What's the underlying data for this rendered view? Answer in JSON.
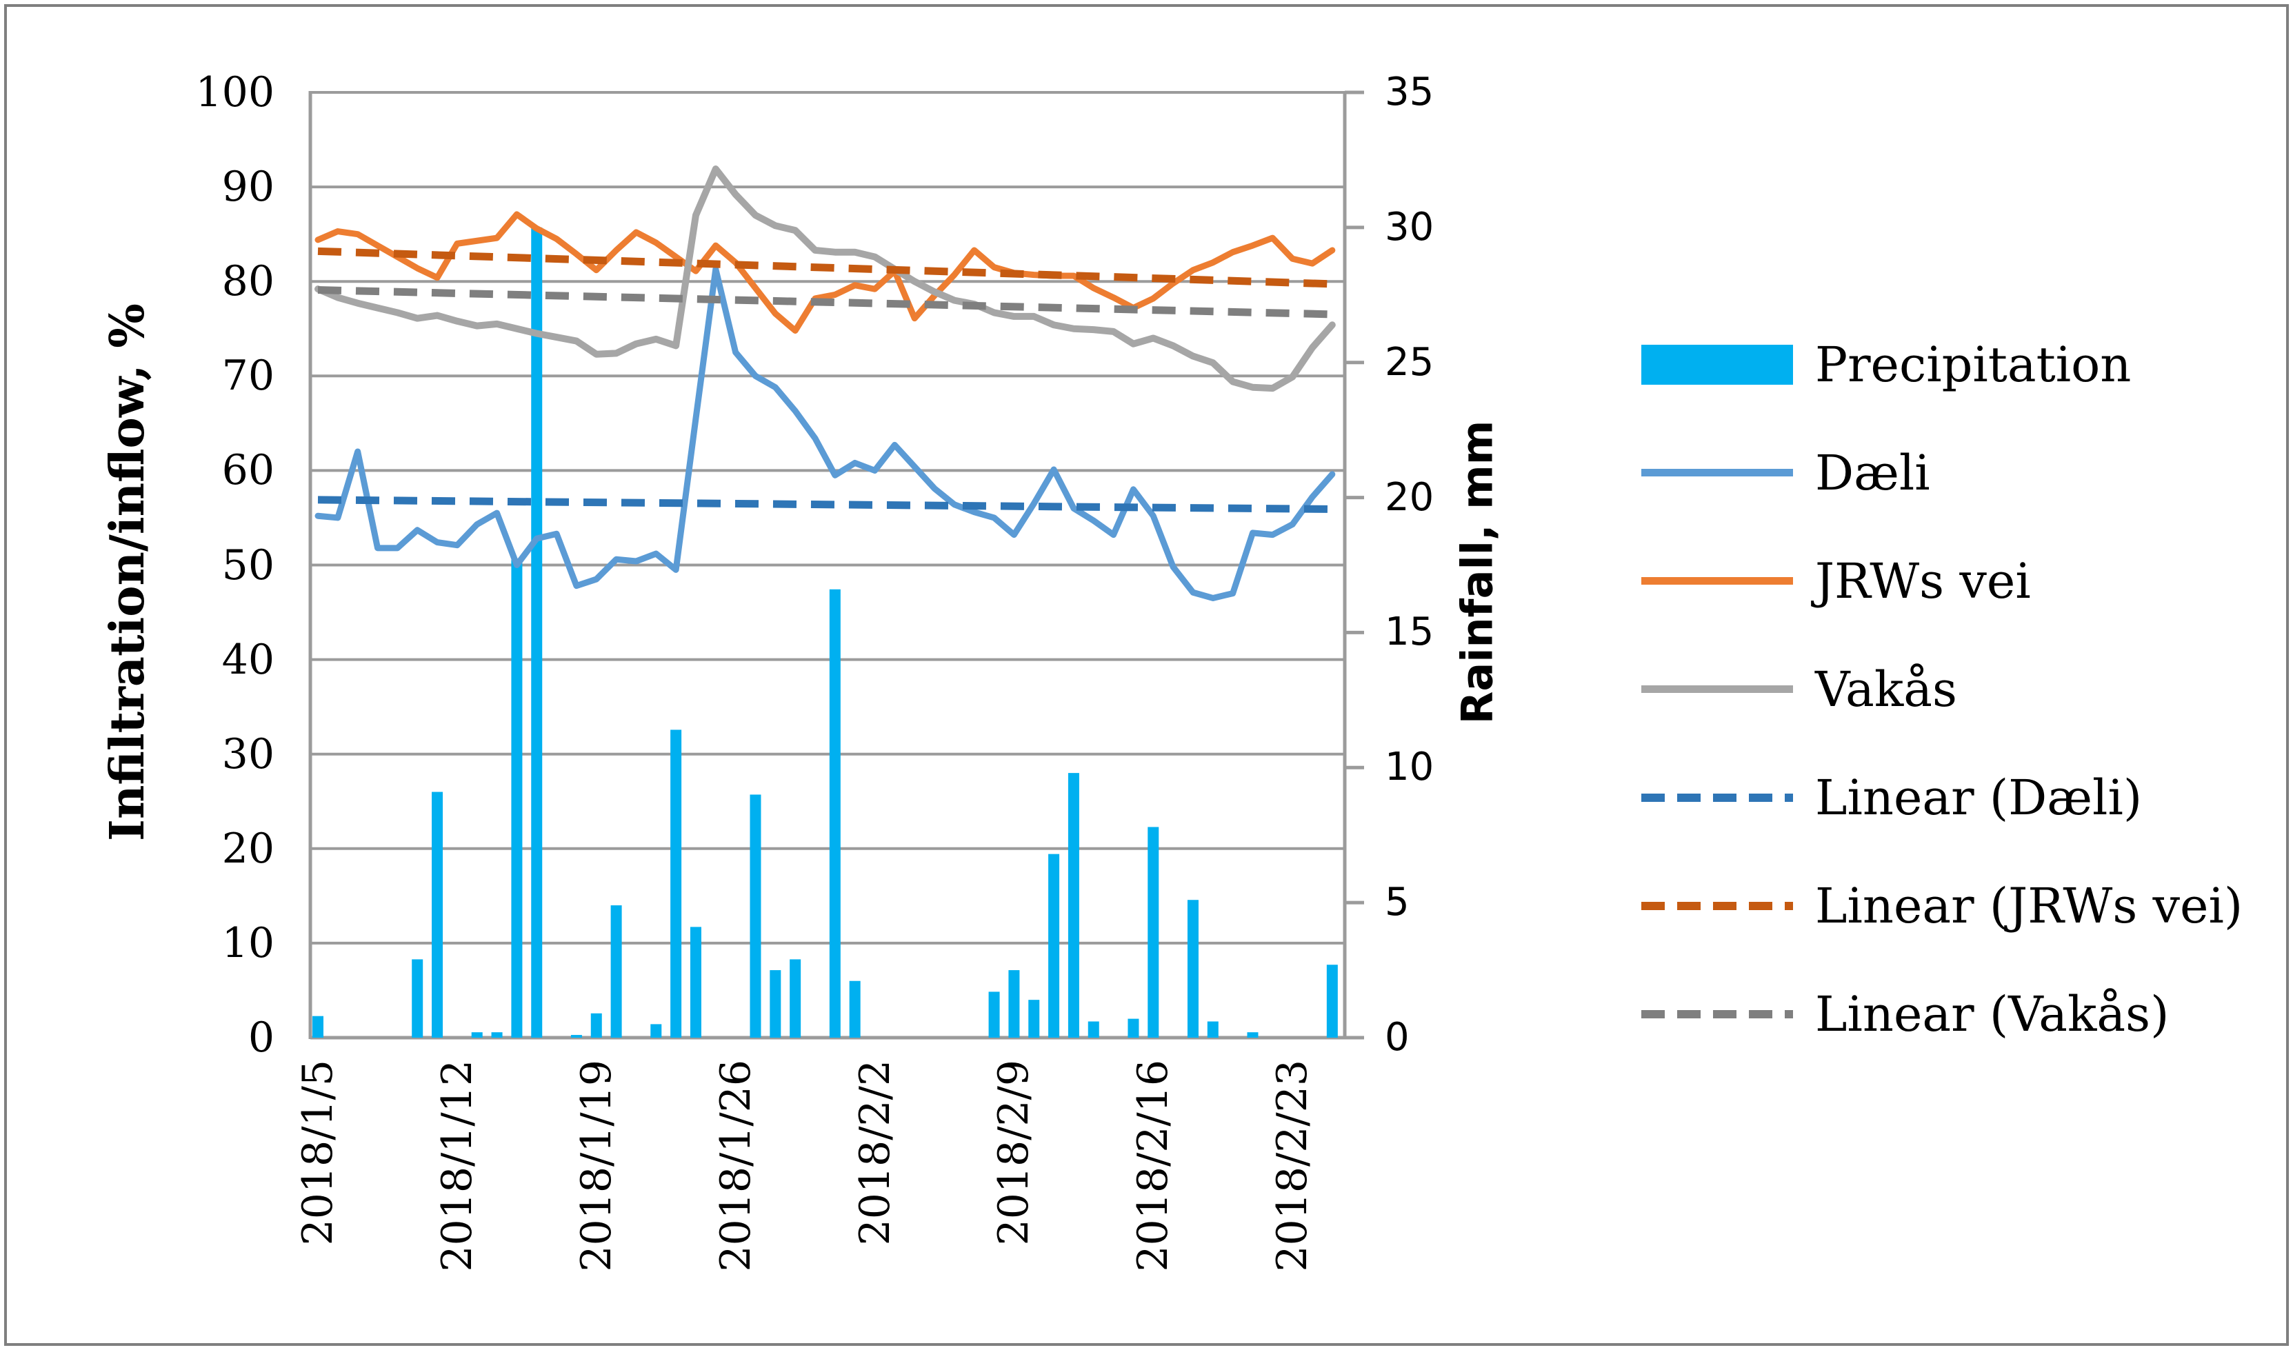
{
  "figure": {
    "left_axis_title": "Infiltration/inflow, %",
    "right_axis_title": "Rainfall, mm"
  },
  "left_axis": {
    "min": 0,
    "max": 100,
    "step": 10,
    "ticks": [
      100,
      90,
      80,
      70,
      60,
      50,
      40,
      30,
      20,
      10,
      0
    ]
  },
  "right_axis": {
    "min": 0,
    "max": 35,
    "step": 5,
    "ticks": [
      35,
      30,
      25,
      20,
      15,
      10,
      5,
      0
    ]
  },
  "x_axis": {
    "visible_labels": [
      "2018/1/5",
      "2018/1/12",
      "2018/1/19",
      "2018/1/26",
      "2018/2/2",
      "2018/2/9",
      "2018/2/16",
      "2018/2/23"
    ],
    "visible_label_indices": [
      0,
      7,
      14,
      21,
      28,
      35,
      42,
      49
    ]
  },
  "colors": {
    "precipitation": "#00B0F0",
    "daeli": "#5B9BD5",
    "jrws_vei": "#ED7D31",
    "vakas": "#A6A6A6",
    "trend_daeli": "#2E75B6",
    "trend_jrws_vei": "#C55A11",
    "trend_vakas": "#7F7F7F",
    "grid": "#9B9B9B",
    "frame": "#7F7F7F"
  },
  "legend": {
    "position": "right",
    "items": [
      {
        "label": "Precipitation",
        "type": "bar",
        "color_key": "precipitation"
      },
      {
        "label": "Dæli",
        "type": "line",
        "color_key": "daeli"
      },
      {
        "label": "JRWs vei",
        "type": "line",
        "color_key": "jrws_vei"
      },
      {
        "label": "Vakås",
        "type": "line",
        "color_key": "vakas"
      },
      {
        "label": "Linear (Dæli)",
        "type": "dash",
        "color_key": "trend_daeli"
      },
      {
        "label": "Linear (JRWs vei)",
        "type": "dash",
        "color_key": "trend_jrws_vei"
      },
      {
        "label": "Linear (Vakås)",
        "type": "dash",
        "color_key": "trend_vakas"
      }
    ]
  },
  "chart_data": {
    "type": "combo-bar-line",
    "grid": "horizontal-on",
    "x": [
      "2018/1/5",
      "2018/1/6",
      "2018/1/7",
      "2018/1/8",
      "2018/1/9",
      "2018/1/10",
      "2018/1/11",
      "2018/1/12",
      "2018/1/13",
      "2018/1/14",
      "2018/1/15",
      "2018/1/16",
      "2018/1/17",
      "2018/1/18",
      "2018/1/19",
      "2018/1/20",
      "2018/1/21",
      "2018/1/22",
      "2018/1/23",
      "2018/1/24",
      "2018/1/25",
      "2018/1/26",
      "2018/1/27",
      "2018/1/28",
      "2018/1/29",
      "2018/1/30",
      "2018/1/31",
      "2018/2/1",
      "2018/2/2",
      "2018/2/3",
      "2018/2/4",
      "2018/2/5",
      "2018/2/6",
      "2018/2/7",
      "2018/2/8",
      "2018/2/9",
      "2018/2/10",
      "2018/2/11",
      "2018/2/12",
      "2018/2/13",
      "2018/2/14",
      "2018/2/15",
      "2018/2/16",
      "2018/2/17",
      "2018/2/18",
      "2018/2/19",
      "2018/2/20",
      "2018/2/21",
      "2018/2/22",
      "2018/2/23",
      "2018/2/24",
      "2018/2/25"
    ],
    "ylabel_left": "Infiltration/inflow, %",
    "ylabel_right": "Rainfall, mm",
    "ylim_left": [
      0,
      100
    ],
    "ylim_right": [
      0,
      35
    ],
    "bar_series": {
      "name": "Precipitation",
      "axis": "right",
      "unit": "mm",
      "color_key": "precipitation",
      "values": [
        0.8,
        0,
        0,
        0,
        0,
        2.9,
        9.1,
        0,
        0.2,
        0.2,
        17.7,
        30,
        0,
        0.1,
        0.9,
        4.9,
        0,
        0.5,
        11.4,
        4.1,
        0,
        0,
        9,
        2.5,
        2.9,
        0,
        16.6,
        2.1,
        0,
        0,
        0,
        0,
        0,
        0,
        1.7,
        2.5,
        1.4,
        6.8,
        9.8,
        0.6,
        0,
        0.7,
        7.8,
        0,
        5.1,
        0.6,
        0,
        0.2,
        0,
        0,
        0,
        2.7
      ]
    },
    "line_series": [
      {
        "name": "Dæli",
        "axis": "left",
        "unit": "%",
        "color_key": "daeli",
        "width": 9,
        "values": [
          55.2,
          55,
          62,
          51.8,
          51.8,
          53.7,
          52.4,
          52.1,
          54.3,
          55.5,
          50,
          52.8,
          53.3,
          47.8,
          48.5,
          50.6,
          50.4,
          51.2,
          49.5,
          65.5,
          81.3,
          72.5,
          70,
          68.8,
          66.3,
          63.4,
          59.5,
          60.8,
          60,
          62.7,
          60.4,
          58.1,
          56.4,
          55.6,
          55,
          53.2,
          56.5,
          60.1,
          56,
          54.7,
          53.2,
          58,
          55.2,
          49.8,
          47.1,
          46.5,
          47,
          53.4,
          53.2,
          54.3,
          57.2,
          59.6
        ]
      },
      {
        "name": "JRWs vei",
        "axis": "left",
        "unit": "%",
        "color_key": "jrws_vei",
        "width": 9,
        "values": [
          84.4,
          85.3,
          85,
          83.8,
          82.6,
          81.4,
          80.4,
          84,
          84.3,
          84.6,
          87.1,
          85.6,
          84.5,
          82.9,
          81.2,
          83.3,
          85.2,
          84.1,
          82.6,
          81.1,
          83.8,
          82,
          79.3,
          76.6,
          74.8,
          78.2,
          78.6,
          79.6,
          79.2,
          81.1,
          76.1,
          78.5,
          80.7,
          83.3,
          81.5,
          80.9,
          80.7,
          80.6,
          80.6,
          79.3,
          78.3,
          77.2,
          78.2,
          79.8,
          81.2,
          82,
          83.1,
          83.8,
          84.6,
          82.4,
          81.9,
          83.3
        ]
      },
      {
        "name": "Vakås",
        "axis": "left",
        "unit": "%",
        "color_key": "vakas",
        "width": 10,
        "values": [
          79.2,
          78.3,
          77.7,
          77.2,
          76.7,
          76.1,
          76.4,
          75.8,
          75.3,
          75.5,
          75,
          74.5,
          74.1,
          73.7,
          72.3,
          72.4,
          73.4,
          73.9,
          73.2,
          87,
          91.9,
          89.2,
          87,
          85.9,
          85.4,
          83.3,
          83.1,
          83.1,
          82.6,
          81.3,
          80,
          78.9,
          78,
          77.6,
          76.7,
          76.3,
          76.3,
          75.4,
          75,
          74.9,
          74.7,
          73.4,
          74,
          73.2,
          72.1,
          71.4,
          69.4,
          68.8,
          68.7,
          69.9,
          73,
          75.4
        ]
      }
    ],
    "trend_lines": [
      {
        "name": "Linear (Dæli)",
        "color_key": "trend_daeli",
        "start": 56.9,
        "end": 55.9
      },
      {
        "name": "Linear (JRWs vei)",
        "color_key": "trend_jrws_vei",
        "start": 83.2,
        "end": 79.7
      },
      {
        "name": "Linear (Vakås)",
        "color_key": "trend_vakas",
        "start": 79.1,
        "end": 76.5
      }
    ]
  }
}
